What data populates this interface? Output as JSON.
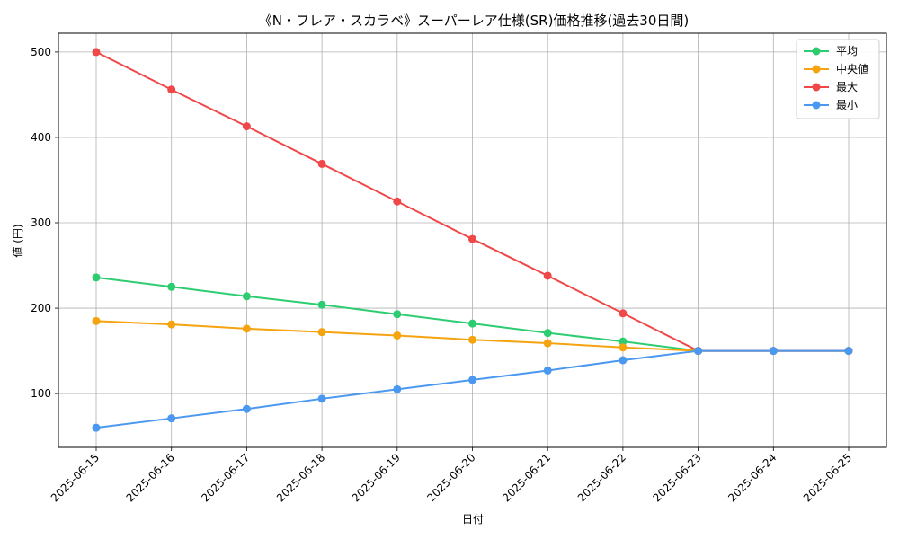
{
  "chart_data": {
    "type": "line",
    "title": "《N・フレア・スカラベ》スーパーレア仕様(SR)価格推移(過去30日間)",
    "xlabel": "日付",
    "ylabel": "値 (円)",
    "ylim": [
      37,
      522
    ],
    "yticks": [
      100,
      200,
      300,
      400,
      500
    ],
    "grid": true,
    "legend_position": "top-right",
    "categories": [
      "2025-06-15",
      "2025-06-16",
      "2025-06-17",
      "2025-06-18",
      "2025-06-19",
      "2025-06-20",
      "2025-06-21",
      "2025-06-22",
      "2025-06-23",
      "2025-06-24",
      "2025-06-25"
    ],
    "series": [
      {
        "name": "平均",
        "color": "#2ecc71",
        "values": [
          236,
          225,
          214,
          204,
          193,
          182,
          171,
          161,
          150,
          150,
          150
        ]
      },
      {
        "name": "中央値",
        "color": "#f5a30f",
        "values": [
          185,
          181,
          176,
          172,
          168,
          163,
          159,
          154,
          150,
          150,
          150
        ]
      },
      {
        "name": "最大",
        "color": "#f04848",
        "values": [
          500,
          456,
          413,
          369,
          325,
          281,
          238,
          194,
          150,
          150,
          150
        ]
      },
      {
        "name": "最小",
        "color": "#4a98f0",
        "values": [
          60,
          71,
          82,
          94,
          105,
          116,
          127,
          139,
          150,
          150,
          150
        ]
      }
    ]
  }
}
